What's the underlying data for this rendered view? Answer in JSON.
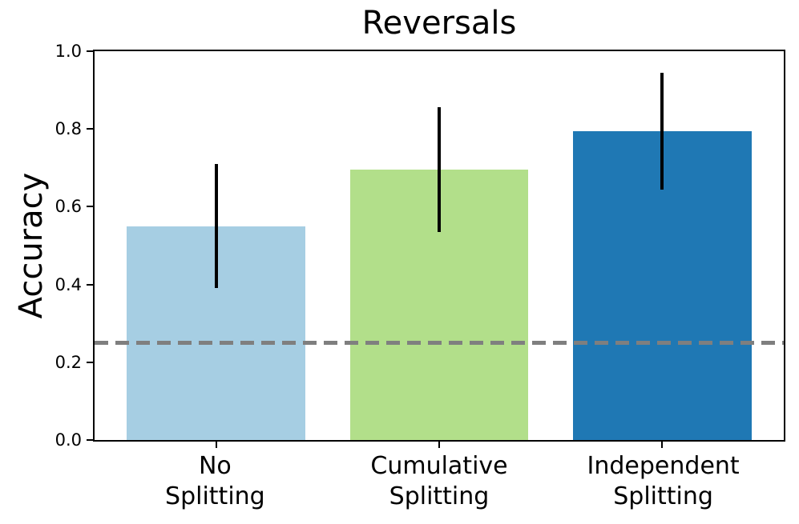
{
  "chart_data": {
    "type": "bar",
    "title": "Reversals",
    "ylabel": "Accuracy",
    "xlabel": "",
    "categories": [
      "No\nSplitting",
      "Cumulative\nSplitting",
      "Independent\nSplitting"
    ],
    "values": [
      0.55,
      0.695,
      0.795
    ],
    "error_low": [
      0.39,
      0.535,
      0.645
    ],
    "error_high": [
      0.71,
      0.855,
      0.945
    ],
    "bar_colors": [
      "#a6cee3",
      "#b2df8a",
      "#1f78b4"
    ],
    "ylim": [
      0.0,
      1.0
    ],
    "xlim": [
      -0.545,
      2.545
    ],
    "bar_width": 0.8,
    "yticks": [
      0.0,
      0.2,
      0.4,
      0.6,
      0.8,
      1.0
    ],
    "ytick_labels": [
      "0.0",
      "0.2",
      "0.4",
      "0.6",
      "0.8",
      "1.0"
    ],
    "chance_line": {
      "y": 0.25,
      "color": "#7f7f7f",
      "style": "dashed"
    },
    "grid": "off",
    "legend": "none"
  }
}
